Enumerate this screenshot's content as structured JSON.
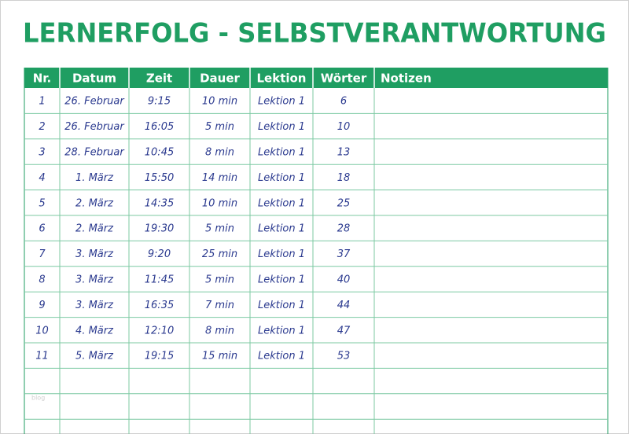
{
  "header": {
    "title": "LERNERFOLG - SELBSTVERANTWORTUNG"
  },
  "table": {
    "columns": [
      "Nr.",
      "Datum",
      "Zeit",
      "Dauer",
      "Lektion",
      "Wörter",
      "Notizen"
    ],
    "rows": [
      [
        "1",
        "26. Februar",
        "9:15",
        "10 min",
        "Lektion 1",
        "6"
      ],
      [
        "2",
        "26. Februar",
        "16:05",
        "5 min",
        "Lektion 1",
        "10"
      ],
      [
        "3",
        "28. Februar",
        "10:45",
        "8 min",
        "Lektion 1",
        "13"
      ],
      [
        "4",
        "1. März",
        "15:50",
        "14 min",
        "Lektion 1",
        "18"
      ],
      [
        "5",
        "2. März",
        "14:35",
        "10 min",
        "Lektion 1",
        "25"
      ],
      [
        "6",
        "2. März",
        "19:30",
        "5 min",
        "Lektion 1",
        "28"
      ],
      [
        "7",
        "3. März",
        "9:20",
        "25 min",
        "Lektion 1",
        "37"
      ],
      [
        "8",
        "3. März",
        "11:45",
        "5 min",
        "Lektion 1",
        "40"
      ],
      [
        "9",
        "3. März",
        "16:35",
        "7 min",
        "Lektion 1",
        "44"
      ],
      [
        "10",
        "4. März",
        "12:10",
        "8 min",
        "Lektion 1",
        "47"
      ],
      [
        "11",
        "5. März",
        "19:15",
        "15 min",
        "Lektion 1",
        "53"
      ]
    ]
  },
  "watermark": "blog"
}
